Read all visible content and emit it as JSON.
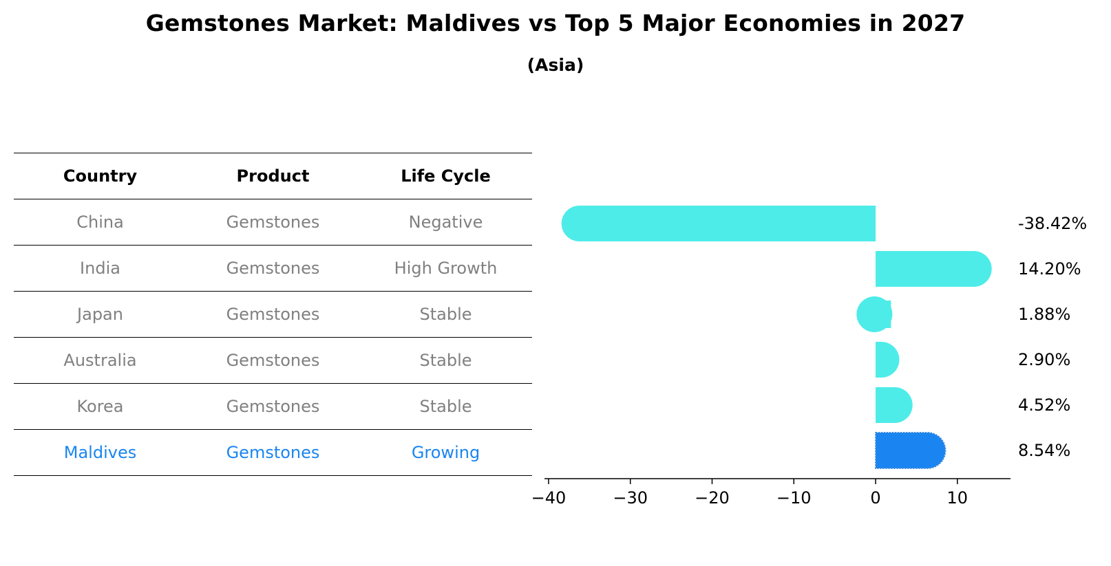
{
  "title": "Gemstones Market: Maldives vs Top 5 Major Economies in 2027",
  "subtitle": "(Asia)",
  "colors": {
    "bar": "#4DECE8",
    "highlight": "#1A85F0",
    "muted_text": "#808080",
    "highlight_text": "#1A85F0"
  },
  "table": {
    "headers": [
      "Country",
      "Product",
      "Life Cycle"
    ],
    "rows": [
      {
        "country": "China",
        "product": "Gemstones",
        "life_cycle": "Negative"
      },
      {
        "country": "India",
        "product": "Gemstones",
        "life_cycle": "High Growth"
      },
      {
        "country": "Japan",
        "product": "Gemstones",
        "life_cycle": "Stable"
      },
      {
        "country": "Australia",
        "product": "Gemstones",
        "life_cycle": "Stable"
      },
      {
        "country": "Korea",
        "product": "Gemstones",
        "life_cycle": "Stable"
      },
      {
        "country": "Maldives",
        "product": "Gemstones",
        "life_cycle": "Growing"
      }
    ]
  },
  "chart_data": {
    "type": "bar",
    "orientation": "horizontal",
    "categories": [
      "China",
      "India",
      "Japan",
      "Australia",
      "Korea",
      "Maldives"
    ],
    "values": [
      -38.42,
      14.2,
      1.88,
      2.9,
      4.52,
      8.54
    ],
    "value_labels": [
      "-38.42%",
      "14.20%",
      "1.88%",
      "2.90%",
      "4.52%",
      "8.54%"
    ],
    "highlight": "Maldives",
    "xlim": [
      -40.5,
      16.5
    ],
    "xticks": [
      -40,
      -30,
      -20,
      -10,
      0,
      10
    ],
    "xtick_labels": [
      "−40",
      "−30",
      "−20",
      "−10",
      "0",
      "10"
    ],
    "grid": false,
    "legend": false
  }
}
